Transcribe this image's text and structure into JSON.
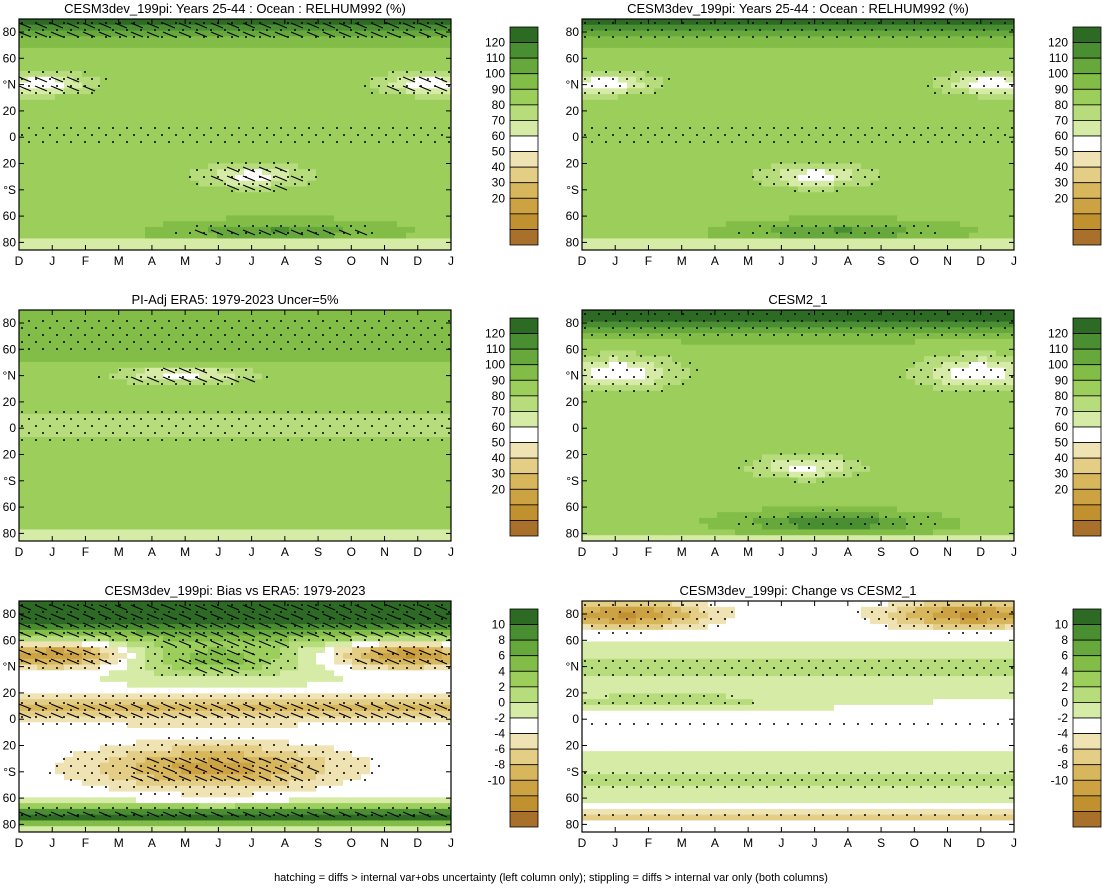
{
  "months": [
    "D",
    "J",
    "F",
    "M",
    "A",
    "M",
    "J",
    "J",
    "A",
    "S",
    "O",
    "N",
    "D",
    "J"
  ],
  "lat_labels": [
    "80",
    "60",
    "°N",
    "20",
    "0",
    "20",
    "°S",
    "60",
    "80"
  ],
  "colors": {
    "abs_scale": [
      "#a8702a",
      "#c0912e",
      "#cca243",
      "#d8b75c",
      "#e4cd84",
      "#efe2b3",
      "#ffffff",
      "#d5eba6",
      "#b7dc7c",
      "#9cce5c",
      "#82bd48",
      "#67a83c",
      "#4a8e32",
      "#2d6b25"
    ],
    "diff_scale": [
      "#a8702a",
      "#c0912e",
      "#cca243",
      "#d8b75c",
      "#e4cd84",
      "#efe2b3",
      "#ffffff",
      "#d5eba6",
      "#b7dc7c",
      "#9cce5c",
      "#82bd48",
      "#67a83c",
      "#4a8e32",
      "#2d6b25"
    ]
  },
  "colorbars": {
    "abs": {
      "labels": [
        "120",
        "110",
        "100",
        "90",
        "80",
        "70",
        "60",
        "50",
        "40",
        "30",
        "20"
      ]
    },
    "diff": {
      "labels": [
        "10",
        "8",
        "6",
        "4",
        "2",
        "0",
        "-2",
        "-4",
        "-6",
        "-8",
        "-10"
      ]
    }
  },
  "panels": [
    {
      "title": "CESM3dev_199pi: Years 25-44 : Ocean : RELHUM992 (%)",
      "scale": "abs",
      "hatch": true,
      "variant": "model"
    },
    {
      "title": "CESM3dev_199pi: Years 25-44 : Ocean : RELHUM992 (%)",
      "scale": "abs",
      "hatch": false,
      "variant": "model"
    },
    {
      "title": "PI-Adj ERA5: 1979-2023 Uncer=5%",
      "scale": "abs",
      "hatch": true,
      "variant": "obs"
    },
    {
      "title": "CESM2_1",
      "scale": "abs",
      "hatch": false,
      "variant": "cesm2"
    },
    {
      "title": "CESM3dev_199pi: Bias vs ERA5: 1979-2023",
      "scale": "diff",
      "hatch": true,
      "variant": "bias"
    },
    {
      "title": "CESM3dev_199pi: Change vs CESM2_1",
      "scale": "diff",
      "hatch": false,
      "variant": "change"
    }
  ],
  "footer": "hatching = diffs > internal var+obs uncertainty (left column only); stippling = diffs > internal var only (both columns)",
  "chart_data": [
    {
      "type": "heatmap",
      "title": "CESM3dev_199pi: Years 25-44 : Ocean : RELHUM992 (%)",
      "x": "month (D..J)",
      "y": "latitude (80N..80S)",
      "zlim": [
        15,
        125
      ],
      "units": "%"
    },
    {
      "type": "heatmap",
      "title": "CESM3dev_199pi: Years 25-44 : Ocean : RELHUM992 (%)",
      "x": "month (D..J)",
      "y": "latitude (80N..80S)",
      "zlim": [
        15,
        125
      ],
      "units": "%"
    },
    {
      "type": "heatmap",
      "title": "PI-Adj ERA5: 1979-2023 Uncer=5%",
      "zlim": [
        15,
        125
      ],
      "units": "%"
    },
    {
      "type": "heatmap",
      "title": "CESM2_1",
      "zlim": [
        15,
        125
      ],
      "units": "%"
    },
    {
      "type": "heatmap",
      "title": "CESM3dev_199pi: Bias vs ERA5: 1979-2023",
      "zlim": [
        -11,
        11
      ]
    },
    {
      "type": "heatmap",
      "title": "CESM3dev_199pi: Change vs CESM2_1",
      "zlim": [
        -11,
        11
      ]
    }
  ]
}
